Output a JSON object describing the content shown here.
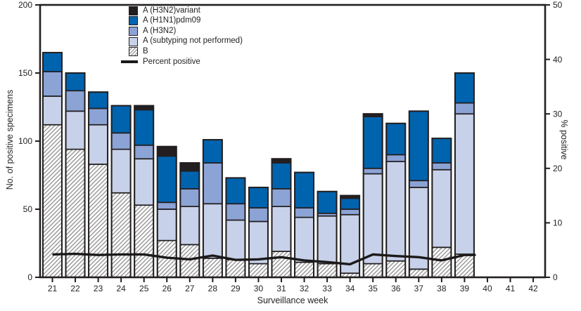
{
  "chart_data": {
    "type": "stacked_bar_with_line",
    "xlabel": "Surveillance week",
    "ylabel_left": "No. of positive specimens",
    "ylabel_right": "% positive",
    "x_ticks": [
      21,
      22,
      23,
      24,
      25,
      26,
      27,
      28,
      29,
      30,
      31,
      32,
      33,
      34,
      35,
      36,
      37,
      38,
      39,
      40,
      41,
      42
    ],
    "bar_weeks": [
      21,
      22,
      23,
      24,
      25,
      26,
      27,
      28,
      29,
      30,
      31,
      32,
      33,
      34,
      35,
      36,
      37,
      38,
      39
    ],
    "ylim_left": [
      0,
      200
    ],
    "yticks_left": [
      0,
      50,
      100,
      150,
      200
    ],
    "ylim_right": [
      0,
      50
    ],
    "yticks_right": [
      0,
      10,
      20,
      30,
      40,
      50
    ],
    "grid": "off",
    "legend_position": "top-left-inside",
    "colors": {
      "variant": "#231F20",
      "h1n1pdm09": "#0063AE",
      "h3n2": "#8CA3D5",
      "not_subtyped": "#C7D1E9",
      "hatch_stroke": "#9B9B9B",
      "hatch_bg": "#FFFFFF",
      "bar_outline": "#231F20",
      "line": "#1C191A",
      "text": "#231F20"
    },
    "series": [
      {
        "key": "b",
        "label": "B",
        "style": "hatch",
        "values": [
          112,
          94,
          83,
          62,
          53,
          27,
          24,
          14,
          13,
          10,
          19,
          11,
          10,
          3,
          10,
          12,
          6,
          22,
          17
        ]
      },
      {
        "key": "not_subtyped",
        "label": "A (subtyping not performed)",
        "style": "fill",
        "values": [
          21,
          28,
          29,
          32,
          34,
          23,
          28,
          40,
          29,
          31,
          33,
          33,
          35,
          43,
          66,
          73,
          60,
          57,
          103
        ]
      },
      {
        "key": "h3n2",
        "label": "A (H3N2)",
        "style": "fill",
        "values": [
          18,
          15,
          12,
          12,
          10,
          5,
          13,
          30,
          12,
          10,
          13,
          7,
          2,
          4,
          4,
          5,
          5,
          5,
          8
        ]
      },
      {
        "key": "h1n1pdm09",
        "label": "A (H1N1)pdm09",
        "style": "fill",
        "values": [
          14,
          13,
          12,
          20,
          26,
          34,
          13,
          17,
          19,
          15,
          19,
          26,
          16,
          8,
          38,
          23,
          51,
          18,
          22
        ]
      },
      {
        "key": "variant",
        "label": "A (H3N2)variant",
        "style": "fill",
        "values": [
          0,
          0,
          0,
          0,
          3,
          7,
          6,
          0,
          0,
          0,
          3,
          0,
          0,
          2,
          2,
          0,
          0,
          0,
          0
        ]
      }
    ],
    "line": {
      "label": "Percent positive",
      "axis": "right",
      "values": [
        4.2,
        4.3,
        4.1,
        4.2,
        4.2,
        3.6,
        3.3,
        4.0,
        3.2,
        3.3,
        3.7,
        3.1,
        2.8,
        2.4,
        4.2,
        3.9,
        3.7,
        3.1,
        4.1
      ]
    },
    "legend": [
      {
        "key": "variant",
        "label": "A (H3N2)variant",
        "swatch": "square"
      },
      {
        "key": "h1n1pdm09",
        "label": "A (H1N1)pdm09",
        "swatch": "square"
      },
      {
        "key": "h3n2",
        "label": "A (H3N2)",
        "swatch": "square"
      },
      {
        "key": "not_subtyped",
        "label": "A (subtyping not performed)",
        "swatch": "square"
      },
      {
        "key": "b",
        "label": "B",
        "swatch": "square_hatch"
      },
      {
        "key": "line",
        "label": "Percent positive",
        "swatch": "line"
      }
    ]
  }
}
